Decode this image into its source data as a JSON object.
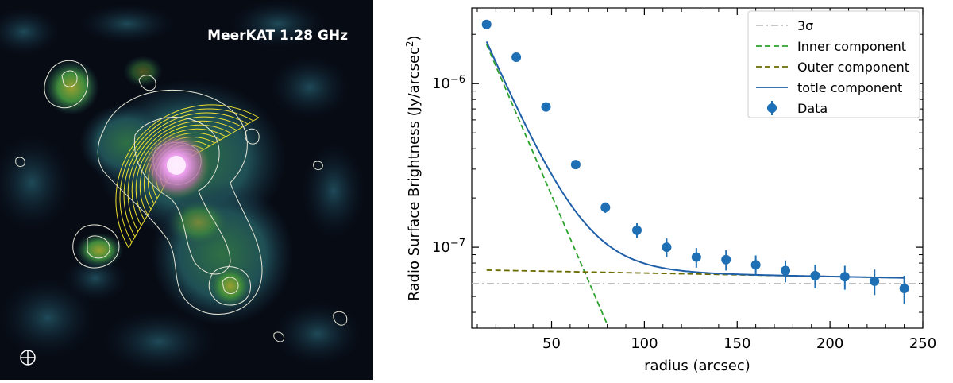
{
  "image_panel": {
    "label": "MeerKAT 1.28 GHz",
    "beam_icon": "beam-ellipse-icon",
    "colors": {
      "background": "#070b14",
      "emission_low": "#1d4a55",
      "emission_mid": "#2f7a3a",
      "emission_high": "#8a9a30",
      "core": "#f0a8f0",
      "contours": "#e8e8d8",
      "sectors": "#f0e030",
      "label": "#ffffff"
    }
  },
  "chart_data": {
    "type": "scatter",
    "xlabel": "radius (arcsec)",
    "ylabel": "Radio Surface Brightness (Jy/arcsec",
    "ylabel_sup": "2",
    "ylabel_end": ")",
    "xlim": [
      7,
      250
    ],
    "ylim": [
      3.2e-08,
      2.9e-06
    ],
    "yscale": "log",
    "x_ticks": [
      50,
      100,
      150,
      200,
      250
    ],
    "x_tick_labels": [
      "50",
      "100",
      "150",
      "200",
      "250"
    ],
    "y_ticks": [
      1e-07,
      1e-06
    ],
    "y_tick_base": "10",
    "y_tick_exponents": [
      "−7",
      "−6"
    ],
    "legend_position": "top-right",
    "legend": [
      {
        "label": "3σ",
        "style": "dashdot",
        "color": "#c0c0c0"
      },
      {
        "label": "Inner component",
        "style": "dashed",
        "color": "#2ca02c"
      },
      {
        "label": "Outer component",
        "style": "dashed",
        "color": "#6b6b00"
      },
      {
        "label": "totle component",
        "style": "solid",
        "color": "#1f5fa8"
      },
      {
        "label": "Data",
        "style": "marker",
        "color": "#1f6fb4"
      }
    ],
    "data": {
      "x": [
        15,
        31,
        47,
        63,
        79,
        96,
        112,
        128,
        144,
        160,
        176,
        192,
        208,
        224,
        240
      ],
      "y": [
        2.3e-06,
        1.45e-06,
        7.2e-07,
        3.2e-07,
        1.75e-07,
        1.27e-07,
        1e-07,
        8.7e-08,
        8.4e-08,
        7.8e-08,
        7.2e-08,
        6.7e-08,
        6.6e-08,
        6.2e-08,
        5.6e-08
      ],
      "yerr": [
        1.5e-08,
        1.5e-08,
        1.5e-08,
        1.6e-08,
        1.3e-08,
        1.3e-08,
        1.3e-08,
        1.2e-08,
        1.2e-08,
        1.1e-08,
        1.1e-08,
        1.1e-08,
        1.1e-08,
        1.1e-08,
        1.1e-08
      ]
    },
    "three_sigma": 6e-08,
    "inner_component": {
      "amplitude": 4.3e-06,
      "scale": 16.5
    },
    "outer_component": {
      "amplitude": 7.3e-08,
      "scale": 2050
    }
  }
}
